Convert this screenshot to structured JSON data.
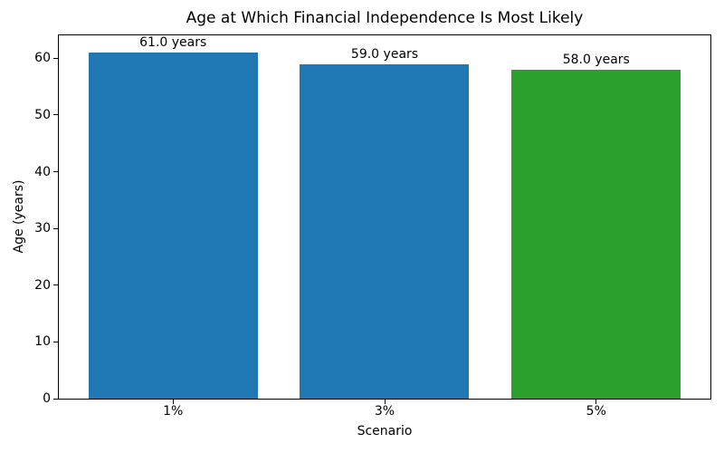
{
  "chart_data": {
    "type": "bar",
    "title": "Age at Which Financial Independence Is Most Likely",
    "xlabel": "Scenario",
    "ylabel": "Age (years)",
    "categories": [
      "1%",
      "3%",
      "5%"
    ],
    "values": [
      61.0,
      59.0,
      58.0
    ],
    "bar_labels": [
      "61.0 years",
      "59.0 years",
      "58.0 years"
    ],
    "bar_colors": [
      "#1f77b4",
      "#1f77b4",
      "#2ca02c"
    ],
    "yticks": [
      0,
      10,
      20,
      30,
      40,
      50,
      60
    ],
    "ylim": [
      0,
      64.05
    ],
    "xlim": [
      -0.54,
      2.54
    ],
    "bar_width": 0.8,
    "grid": false,
    "legend_position": "none",
    "background_color": "#ffffff",
    "text_color": "#000000",
    "spine_color": "#000000"
  }
}
